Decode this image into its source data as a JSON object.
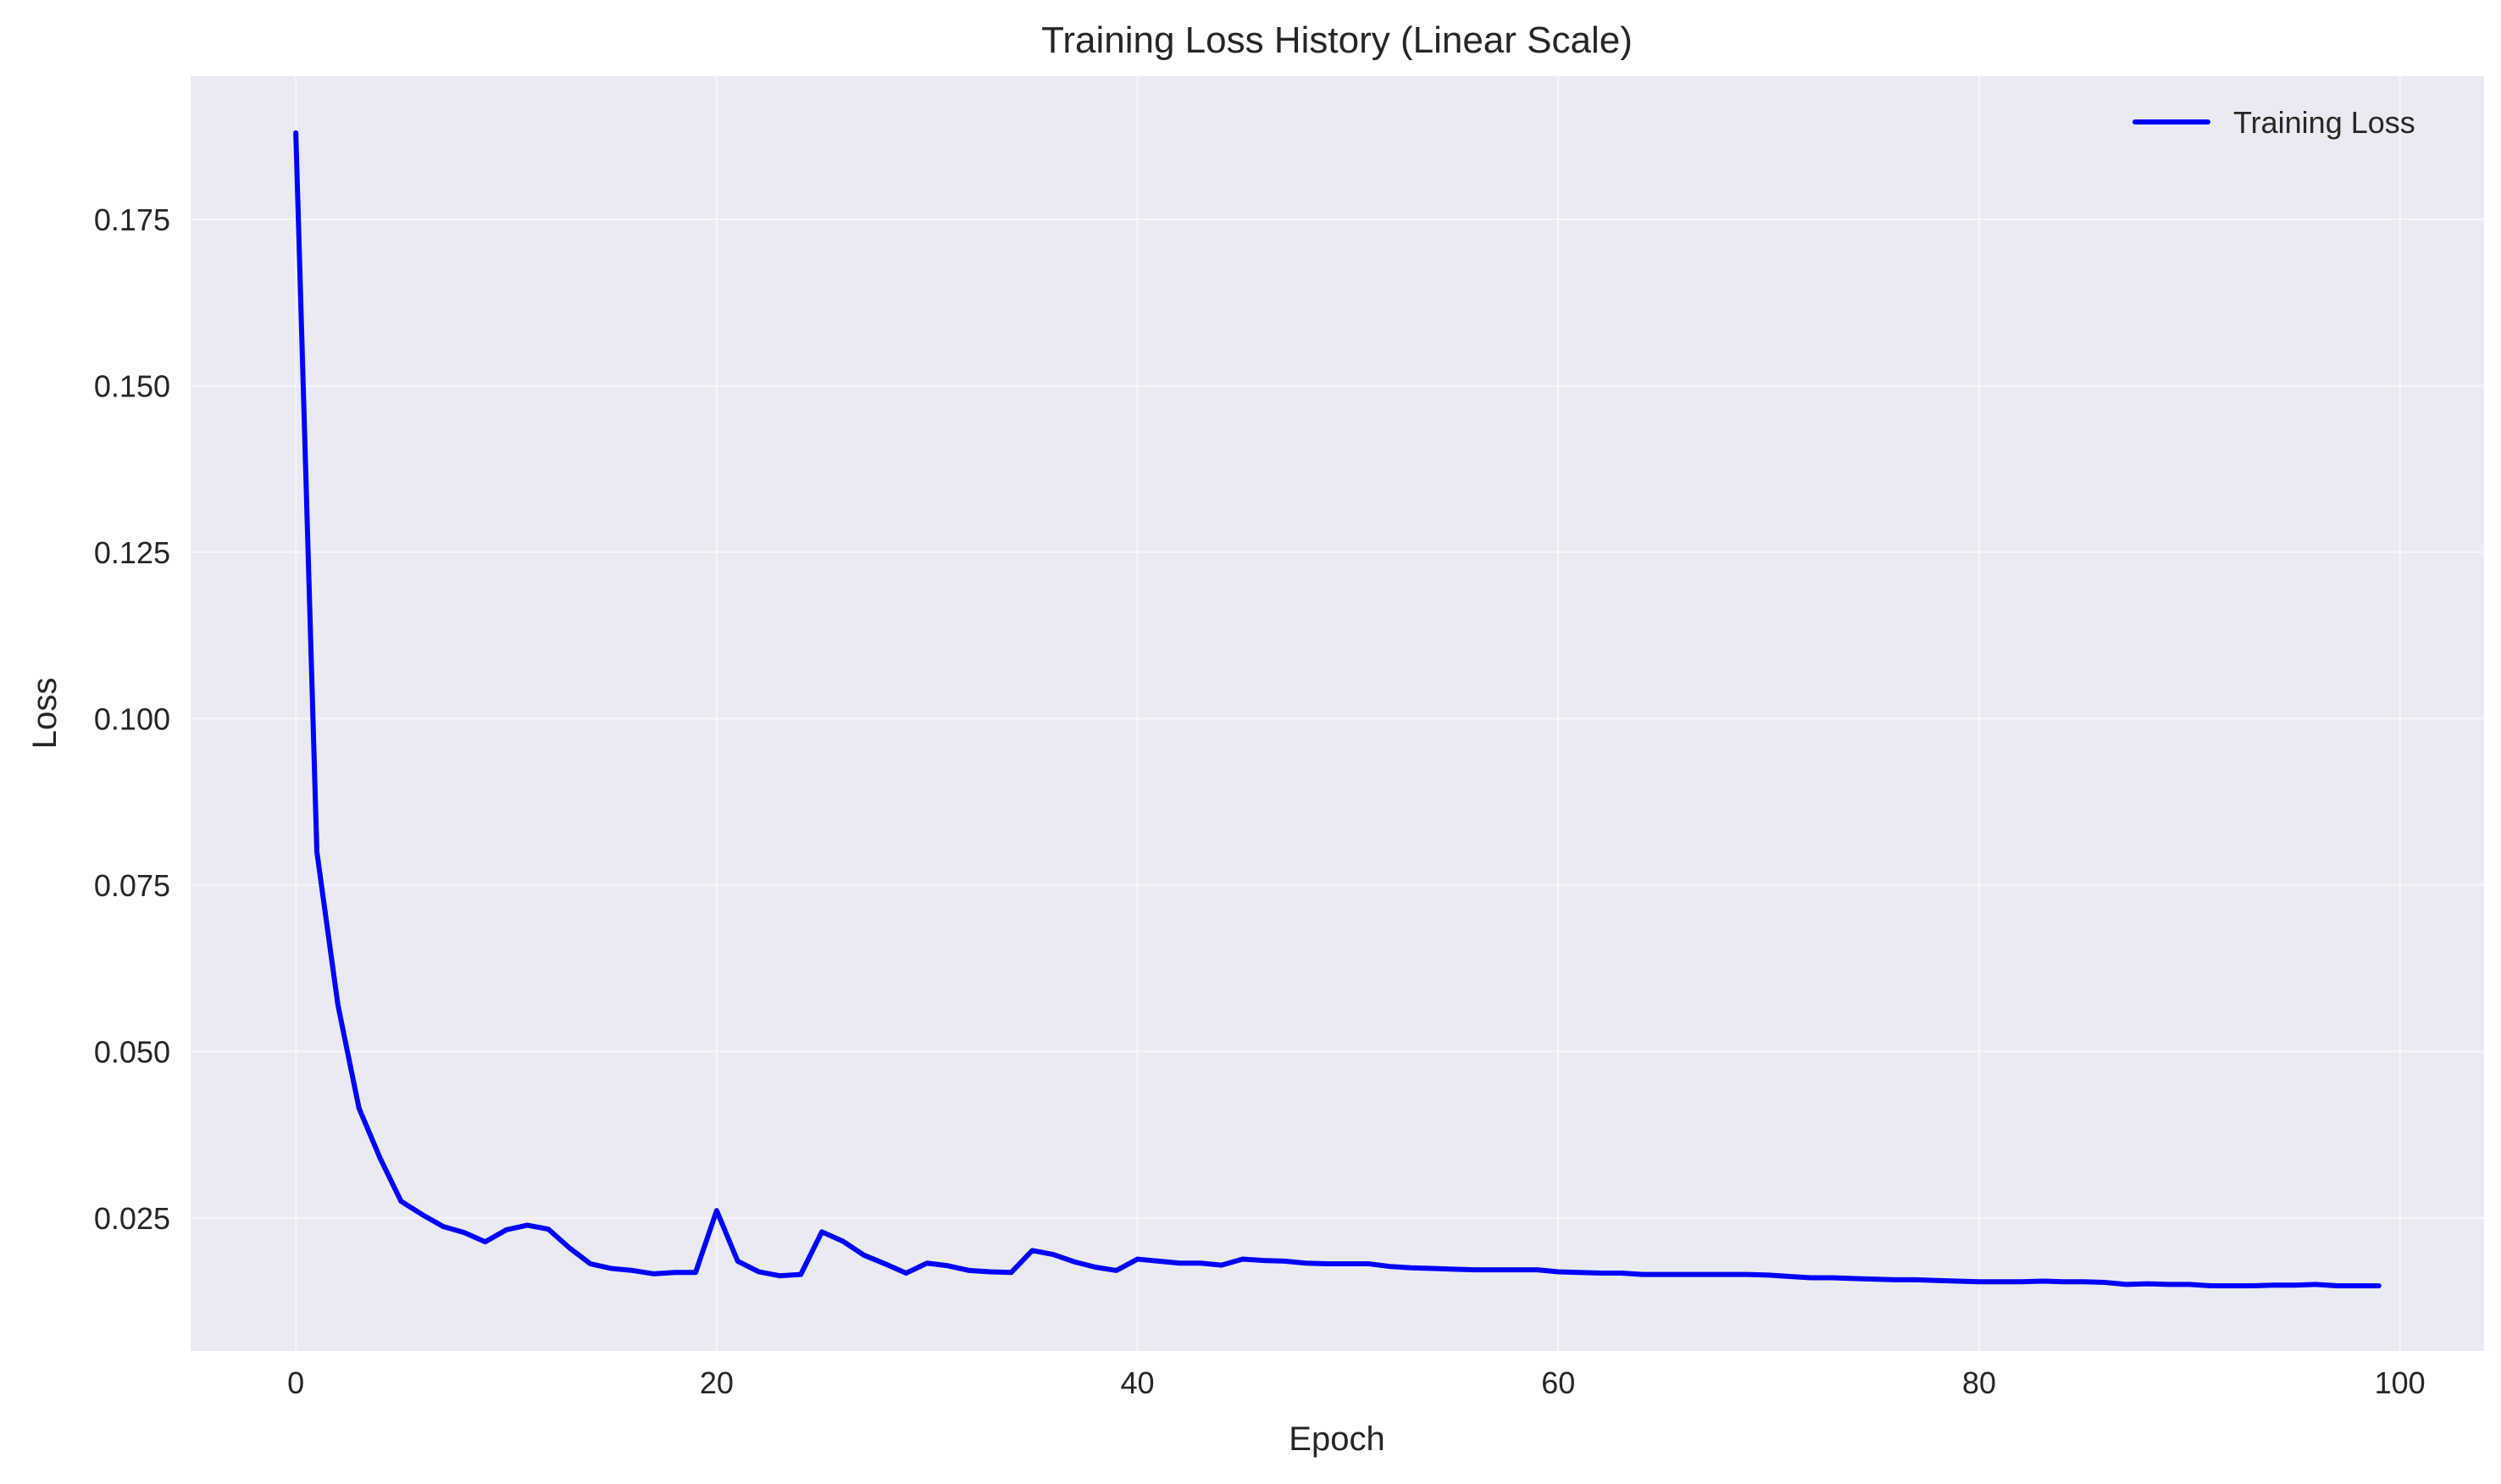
{
  "chart_data": {
    "type": "line",
    "title": "Training Loss History (Linear Scale)",
    "xlabel": "Epoch",
    "ylabel": "Loss",
    "xlim": [
      -5,
      104
    ],
    "ylim": [
      0.005,
      0.1965
    ],
    "xticks": [
      0,
      20,
      40,
      60,
      80,
      100
    ],
    "yticks": [
      0.025,
      0.05,
      0.075,
      0.1,
      0.125,
      0.15,
      0.175
    ],
    "ytick_labels": [
      "0.025",
      "0.050",
      "0.075",
      "0.100",
      "0.125",
      "0.150",
      "0.175"
    ],
    "grid": true,
    "legend_position": "top-right",
    "series": [
      {
        "name": "Training Loss",
        "color": "#0000ff",
        "x": [
          0,
          1,
          2,
          3,
          4,
          5,
          6,
          7,
          8,
          9,
          10,
          11,
          12,
          13,
          14,
          15,
          16,
          17,
          18,
          19,
          20,
          21,
          22,
          23,
          24,
          25,
          26,
          27,
          28,
          29,
          30,
          31,
          32,
          33,
          34,
          35,
          36,
          37,
          38,
          39,
          40,
          41,
          42,
          43,
          44,
          45,
          46,
          47,
          48,
          49,
          50,
          51,
          52,
          53,
          54,
          55,
          56,
          57,
          58,
          59,
          60,
          61,
          62,
          63,
          64,
          65,
          66,
          67,
          68,
          69,
          70,
          71,
          72,
          73,
          74,
          75,
          76,
          77,
          78,
          79,
          80,
          81,
          82,
          83,
          84,
          85,
          86,
          87,
          88,
          89,
          90,
          91,
          92,
          93,
          94,
          95,
          96,
          97,
          98,
          99
        ],
        "values": [
          0.188,
          0.08,
          0.057,
          0.0415,
          0.034,
          0.0275,
          0.0255,
          0.0237,
          0.0228,
          0.0214,
          0.0232,
          0.0239,
          0.0233,
          0.0205,
          0.0181,
          0.0174,
          0.0171,
          0.0166,
          0.0168,
          0.0168,
          0.0261,
          0.0185,
          0.0169,
          0.0163,
          0.0165,
          0.0229,
          0.0215,
          0.0194,
          0.0181,
          0.0167,
          0.0182,
          0.0178,
          0.0171,
          0.0169,
          0.0168,
          0.0201,
          0.0195,
          0.0184,
          0.0176,
          0.0171,
          0.0188,
          0.0185,
          0.0182,
          0.0182,
          0.0179,
          0.0188,
          0.0186,
          0.0185,
          0.0182,
          0.0181,
          0.0181,
          0.0181,
          0.0177,
          0.0175,
          0.0174,
          0.0173,
          0.0172,
          0.0172,
          0.0172,
          0.0172,
          0.0169,
          0.0168,
          0.0167,
          0.0167,
          0.0165,
          0.0165,
          0.0165,
          0.0165,
          0.0165,
          0.0165,
          0.0164,
          0.0162,
          0.016,
          0.016,
          0.0159,
          0.0158,
          0.0157,
          0.0157,
          0.0156,
          0.0155,
          0.0154,
          0.0154,
          0.0154,
          0.0155,
          0.0154,
          0.0154,
          0.0153,
          0.015,
          0.0151,
          0.015,
          0.015,
          0.0148,
          0.0148,
          0.0148,
          0.0149,
          0.0149,
          0.015,
          0.0148,
          0.0148,
          0.0148
        ]
      }
    ]
  },
  "colors": {
    "plot_background": "#eaeaf2",
    "grid": "#ffffff",
    "line": "#0000ff"
  }
}
